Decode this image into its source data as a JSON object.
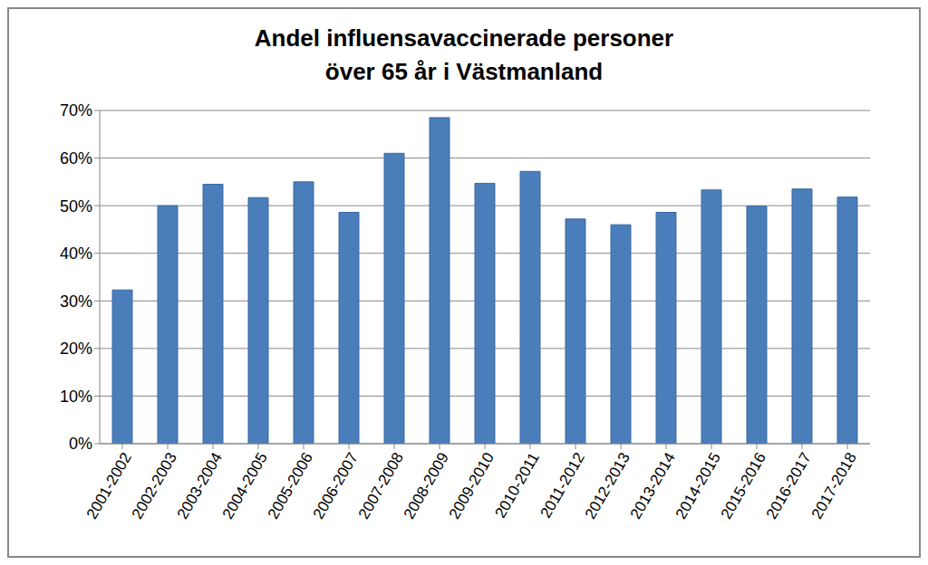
{
  "chart_data": {
    "type": "bar",
    "title": "Andel influensavaccinerade personer över 65 år i Västmanland",
    "categories": [
      "2001-2002",
      "2002-2003",
      "2003-2004",
      "2004-2005",
      "2005-2006",
      "2006-2007",
      "2007-2008",
      "2008-2009",
      "2009-2010",
      "2010-2011",
      "2011-2012",
      "2012-2013",
      "2013-2014",
      "2014-2015",
      "2015-2016",
      "2016-2017",
      "2017-2018"
    ],
    "values": [
      32.3,
      50,
      54.5,
      51.7,
      55,
      48.6,
      61,
      68.5,
      54.7,
      57.2,
      47.2,
      46,
      48.6,
      53.3,
      49.9,
      53.5,
      51.8
    ],
    "color": "#4a7ebb",
    "ylim": [
      0,
      70
    ],
    "yticks": [
      {
        "value": 0,
        "label": "0%"
      },
      {
        "value": 10,
        "label": "10%"
      },
      {
        "value": 20,
        "label": "20%"
      },
      {
        "value": 30,
        "label": "30%"
      },
      {
        "value": 40,
        "label": "40%"
      },
      {
        "value": 50,
        "label": "50%"
      },
      {
        "value": 60,
        "label": "60%"
      },
      {
        "value": 70,
        "label": "70%"
      }
    ],
    "grid": true
  }
}
